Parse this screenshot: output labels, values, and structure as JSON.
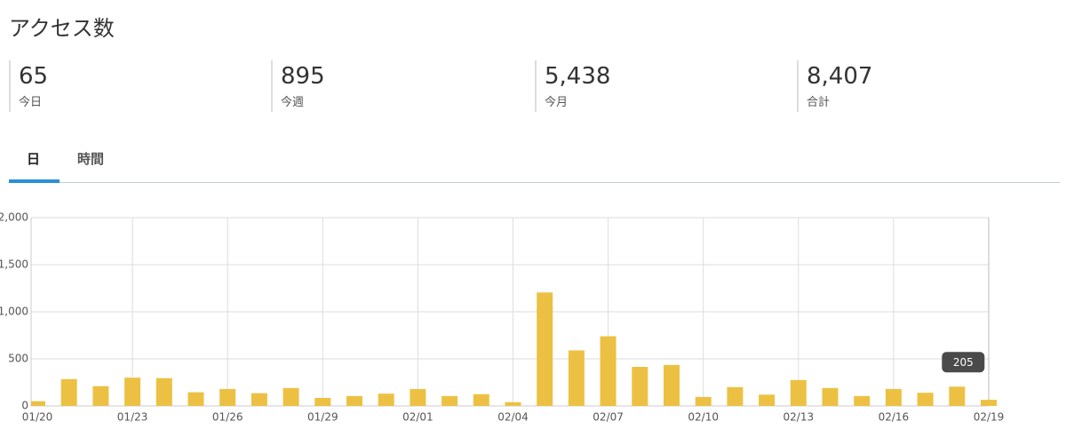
{
  "header": {
    "title": "アクセス数"
  },
  "stats": [
    {
      "value": "65",
      "label": "今日"
    },
    {
      "value": "895",
      "label": "今週"
    },
    {
      "value": "5,438",
      "label": "今月"
    },
    {
      "value": "8,407",
      "label": "合計"
    }
  ],
  "tabs": [
    "日",
    "時間"
  ],
  "chart_data": {
    "type": "bar",
    "categories": [
      "01/20",
      null,
      null,
      "01/23",
      null,
      null,
      "01/26",
      null,
      null,
      "01/29",
      null,
      null,
      "02/01",
      null,
      null,
      "02/04",
      null,
      null,
      "02/07",
      null,
      null,
      "02/10",
      null,
      null,
      "02/13",
      null,
      null,
      "02/16",
      null,
      null,
      "02/19"
    ],
    "values": [
      50,
      285,
      210,
      300,
      295,
      145,
      180,
      135,
      190,
      85,
      105,
      130,
      180,
      105,
      125,
      40,
      1205,
      590,
      740,
      415,
      435,
      95,
      200,
      120,
      275,
      190,
      105,
      180,
      140,
      205,
      65
    ],
    "color": "#ecc143",
    "ylim": [
      0,
      2000
    ],
    "yticks": [
      0,
      500,
      {
        "value": 1000,
        "label": "1,000"
      },
      {
        "value": 1500,
        "label": "1,500"
      },
      {
        "value": 2000,
        "label": "2,000"
      }
    ],
    "grid": true,
    "tooltip": 205
  }
}
